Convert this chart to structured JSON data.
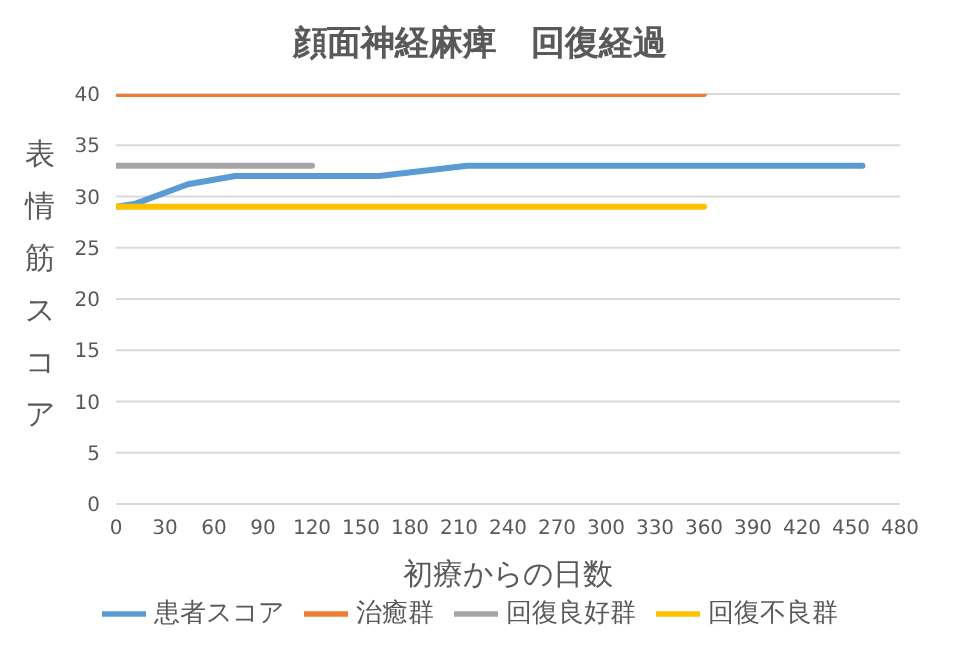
{
  "chart_data": {
    "type": "line",
    "title": "顔面神経麻痺　回復経過",
    "xlabel": "初療からの日数",
    "ylabel": "表情筋スコア",
    "xlim": [
      0,
      480
    ],
    "xticks": [
      0,
      30,
      60,
      90,
      120,
      150,
      180,
      210,
      240,
      270,
      300,
      330,
      360,
      390,
      420,
      450,
      480
    ],
    "ylim": [
      0,
      40
    ],
    "yticks": [
      0,
      5,
      10,
      15,
      20,
      25,
      30,
      35,
      40
    ],
    "grid": "y",
    "legend": "bottom",
    "marker": "none",
    "series": [
      {
        "name": "患者スコア",
        "color": "#5b9bd5",
        "x": [
          0,
          12,
          44,
          73,
          161,
          215,
          457
        ],
        "values": [
          29,
          29.3,
          31.2,
          32,
          32,
          33,
          33
        ]
      },
      {
        "name": "治癒群",
        "color": "#ed7d31",
        "x": [
          0,
          360
        ],
        "values": [
          40,
          40
        ]
      },
      {
        "name": "回復良好群",
        "color": "#a5a5a5",
        "x": [
          0,
          120
        ],
        "values": [
          33,
          33
        ]
      },
      {
        "name": "回復不良群",
        "color": "#ffc000",
        "x": [
          0,
          360
        ],
        "values": [
          29,
          29
        ]
      }
    ]
  }
}
